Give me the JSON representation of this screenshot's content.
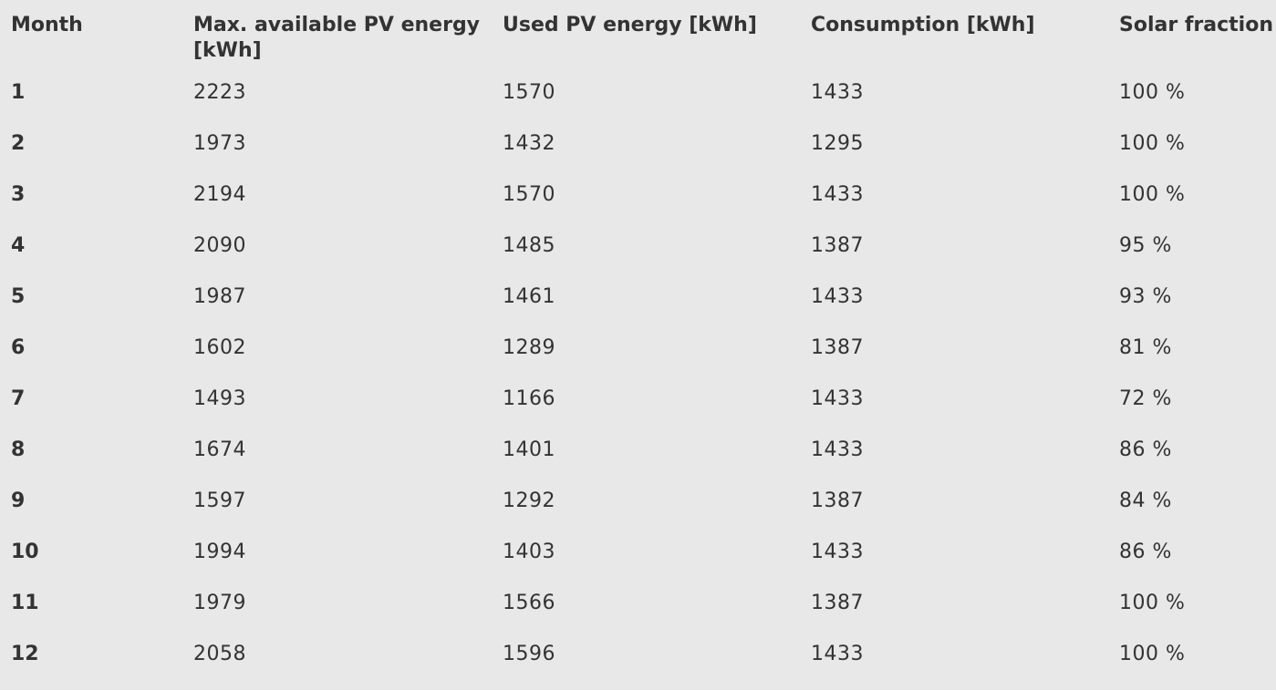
{
  "table": {
    "headers": [
      "Month",
      "Max. available PV energy [kWh]",
      "Used PV energy [kWh]",
      "Consumption [kWh]",
      "Solar fraction"
    ],
    "rows": [
      [
        "1",
        "2223",
        "1570",
        "1433",
        "100 %"
      ],
      [
        "2",
        "1973",
        "1432",
        "1295",
        "100 %"
      ],
      [
        "3",
        "2194",
        "1570",
        "1433",
        "100 %"
      ],
      [
        "4",
        "2090",
        "1485",
        "1387",
        "95 %"
      ],
      [
        "5",
        "1987",
        "1461",
        "1433",
        "93 %"
      ],
      [
        "6",
        "1602",
        "1289",
        "1387",
        "81 %"
      ],
      [
        "7",
        "1493",
        "1166",
        "1433",
        "72 %"
      ],
      [
        "8",
        "1674",
        "1401",
        "1433",
        "86 %"
      ],
      [
        "9",
        "1597",
        "1292",
        "1387",
        "84 %"
      ],
      [
        "10",
        "1994",
        "1403",
        "1433",
        "86 %"
      ],
      [
        "11",
        "1979",
        "1566",
        "1387",
        "100 %"
      ],
      [
        "12",
        "2058",
        "1596",
        "1433",
        "100 %"
      ]
    ]
  }
}
